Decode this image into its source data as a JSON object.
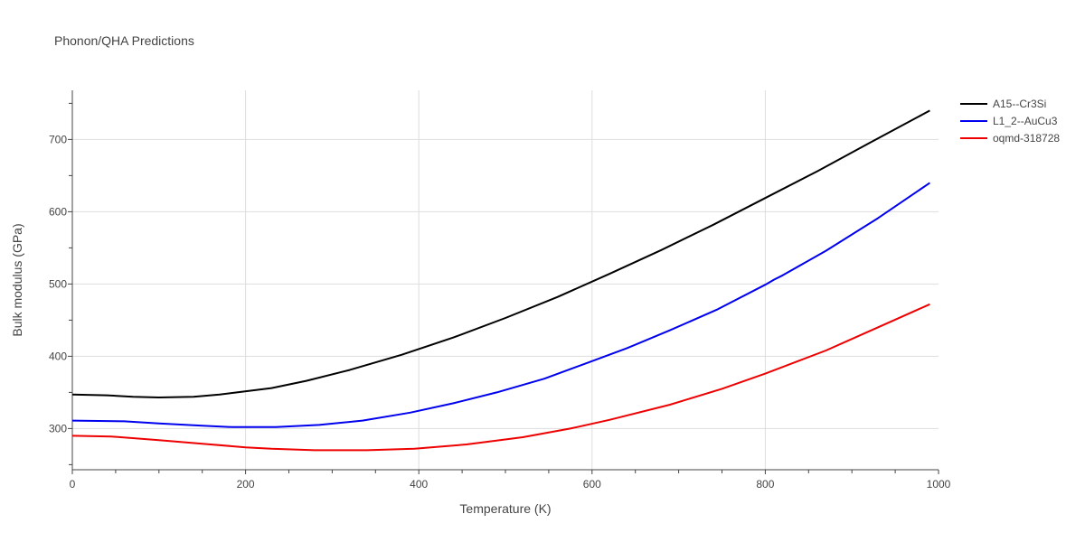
{
  "chart_data": {
    "type": "line",
    "title": "Phonon/QHA Predictions",
    "xlabel": "Temperature (K)",
    "ylabel": "Bulk modulus (GPa)",
    "xlim": [
      0,
      1000
    ],
    "ylim": [
      243,
      768
    ],
    "xticks": [
      0,
      200,
      400,
      600,
      800,
      1000
    ],
    "yticks": [
      300,
      400,
      500,
      600,
      700
    ],
    "grid": true,
    "legend_position": "top-right",
    "series": [
      {
        "name": "A15--Cr3Si",
        "color": "#000000",
        "x": [
          0,
          40,
          70,
          100,
          140,
          170,
          190,
          230,
          270,
          320,
          380,
          440,
          500,
          560,
          620,
          680,
          740,
          800,
          860,
          920,
          990
        ],
        "y": [
          347,
          346,
          344,
          343,
          344,
          347,
          350,
          356,
          366,
          381,
          402,
          426,
          453,
          482,
          514,
          547,
          582,
          619,
          656,
          695,
          740
        ]
      },
      {
        "name": "L1_2--AuCu3",
        "color": "#0000ee",
        "x": [
          0,
          60,
          100,
          150,
          185,
          235,
          285,
          335,
          390,
          440,
          490,
          545,
          595,
          640,
          690,
          745,
          800,
          810,
          820,
          870,
          930,
          990
        ],
        "y": [
          311,
          310,
          307,
          304,
          302,
          302,
          305,
          311,
          322,
          335,
          350,
          369,
          391,
          411,
          436,
          465,
          499,
          506,
          512,
          546,
          591,
          640
        ]
      },
      {
        "name": "oqmd-318728",
        "color": "#ee0000",
        "x": [
          0,
          45,
          100,
          150,
          200,
          230,
          280,
          340,
          395,
          455,
          520,
          575,
          620,
          690,
          750,
          800,
          870,
          930,
          990
        ],
        "y": [
          290,
          289,
          284,
          279,
          274,
          272,
          270,
          270,
          272,
          278,
          288,
          300,
          312,
          333,
          355,
          376,
          408,
          440,
          472
        ]
      }
    ]
  }
}
